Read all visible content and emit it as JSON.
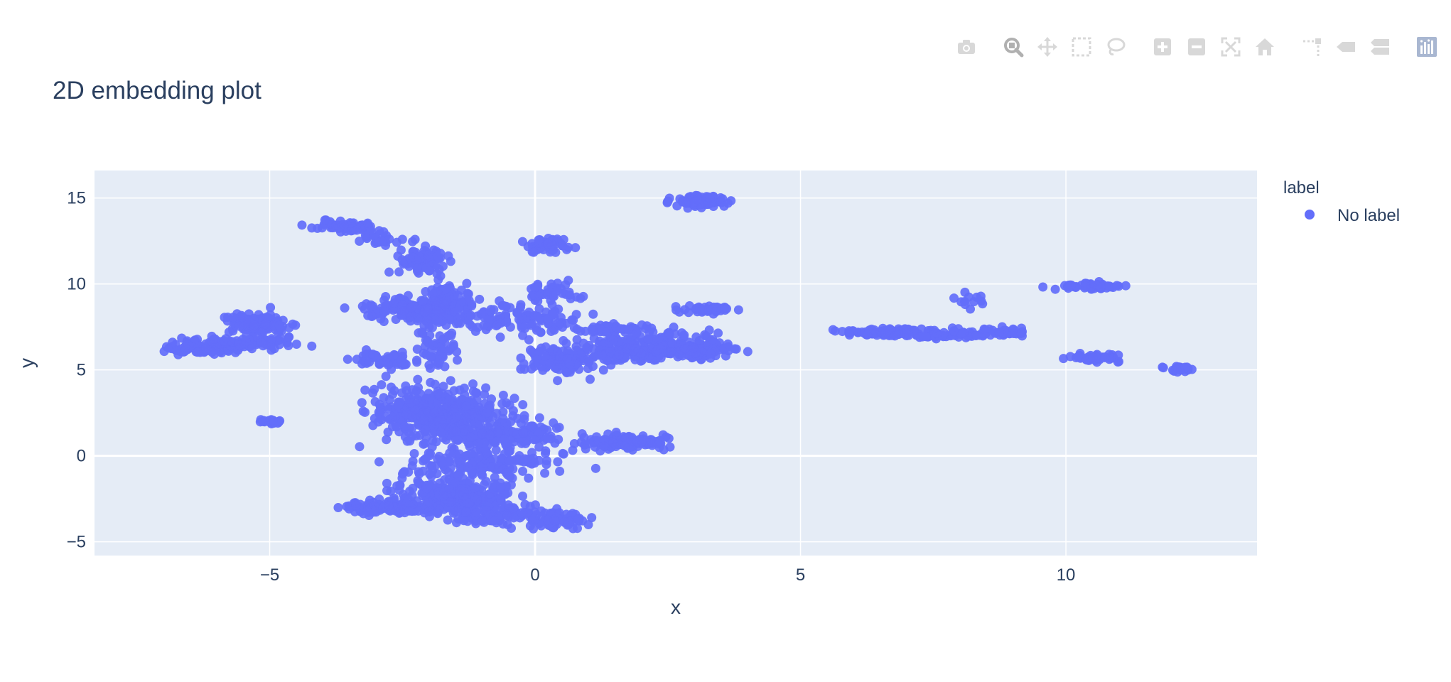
{
  "modebar": {
    "buttons": [
      "camera-icon",
      "zoom-icon",
      "pan-icon",
      "box-select-icon",
      "lasso-icon",
      "zoom-in-icon",
      "zoom-out-icon",
      "autoscale-icon",
      "reset-axes-icon",
      "spike-lines-icon",
      "hover-closest-icon",
      "hover-compare-icon",
      "plotly-logo-icon"
    ]
  },
  "colors": {
    "marker": "#636efa",
    "plot_bg": "#e5ecf6",
    "grid": "#ffffff",
    "modebar_icon": "#d8d8d8",
    "modebar_active": "#b0b0b0",
    "text": "#2a3f5f"
  },
  "chart_data": {
    "type": "scatter",
    "title": "2D embedding plot",
    "xlabel": "x",
    "ylabel": "y",
    "xlim": [
      -8.3,
      13.6
    ],
    "ylim": [
      -5.8,
      16.6
    ],
    "xticks": [
      -5,
      0,
      5,
      10
    ],
    "yticks": [
      -5,
      0,
      5,
      10,
      15
    ],
    "xtick_labels": [
      "−5",
      "0",
      "5",
      "10"
    ],
    "ytick_labels": [
      "−5",
      "0",
      "5",
      "10",
      "15"
    ],
    "grid": true,
    "legend": {
      "title": "label",
      "placement": "top-right outside",
      "entries": [
        "No label"
      ]
    },
    "series": [
      {
        "name": "No label",
        "clusters": [
          {
            "x": -6.3,
            "y": 6.3,
            "sx": 0.4,
            "sy": 0.2,
            "n": 110
          },
          {
            "x": -5.2,
            "y": 7.7,
            "sx": 0.3,
            "sy": 0.3,
            "n": 110
          },
          {
            "x": -5.3,
            "y": 6.6,
            "sx": 0.4,
            "sy": 0.2,
            "n": 70
          },
          {
            "x": -5.0,
            "y": 2.0,
            "sx": 0.1,
            "sy": 0.08,
            "n": 20
          },
          {
            "x": -3.6,
            "y": 13.4,
            "sx": 0.3,
            "sy": 0.15,
            "n": 60
          },
          {
            "x": -3.0,
            "y": 12.8,
            "sx": 0.3,
            "sy": 0.3,
            "n": 30
          },
          {
            "x": -2.1,
            "y": 11.3,
            "sx": 0.25,
            "sy": 0.4,
            "n": 70
          },
          {
            "x": -2.3,
            "y": 8.5,
            "sx": 0.5,
            "sy": 0.3,
            "n": 160
          },
          {
            "x": -1.7,
            "y": 8.7,
            "sx": 0.3,
            "sy": 0.7,
            "n": 110
          },
          {
            "x": -2.7,
            "y": 5.6,
            "sx": 0.4,
            "sy": 0.2,
            "n": 60
          },
          {
            "x": -1.8,
            "y": 6.5,
            "sx": 0.2,
            "sy": 0.5,
            "n": 40
          },
          {
            "x": -2.1,
            "y": 2.6,
            "sx": 0.5,
            "sy": 0.7,
            "n": 250
          },
          {
            "x": -1.3,
            "y": 2.0,
            "sx": 0.5,
            "sy": 0.8,
            "n": 200
          },
          {
            "x": -0.5,
            "y": 1.2,
            "sx": 0.6,
            "sy": 0.3,
            "n": 110
          },
          {
            "x": -0.9,
            "y": -0.4,
            "sx": 0.7,
            "sy": 0.4,
            "n": 160
          },
          {
            "x": -1.5,
            "y": -2.3,
            "sx": 0.6,
            "sy": 0.5,
            "n": 220
          },
          {
            "x": -2.7,
            "y": -3.0,
            "sx": 0.5,
            "sy": 0.2,
            "n": 110
          },
          {
            "x": -0.7,
            "y": -3.3,
            "sx": 0.5,
            "sy": 0.4,
            "n": 110
          },
          {
            "x": 0.5,
            "y": -3.8,
            "sx": 0.3,
            "sy": 0.25,
            "n": 60
          },
          {
            "x": -0.3,
            "y": 8.0,
            "sx": 0.5,
            "sy": 0.5,
            "n": 110
          },
          {
            "x": 0.3,
            "y": 9.5,
            "sx": 0.3,
            "sy": 0.3,
            "n": 40
          },
          {
            "x": 0.3,
            "y": 12.3,
            "sx": 0.2,
            "sy": 0.2,
            "n": 50
          },
          {
            "x": 0.5,
            "y": 5.5,
            "sx": 0.4,
            "sy": 0.4,
            "n": 90
          },
          {
            "x": 1.5,
            "y": 6.0,
            "sx": 0.6,
            "sy": 0.3,
            "n": 110
          },
          {
            "x": 2.4,
            "y": 6.4,
            "sx": 0.6,
            "sy": 0.4,
            "n": 140
          },
          {
            "x": 1.5,
            "y": 7.4,
            "sx": 0.4,
            "sy": 0.15,
            "n": 50
          },
          {
            "x": 3.1,
            "y": 6.1,
            "sx": 0.3,
            "sy": 0.2,
            "n": 60
          },
          {
            "x": 3.3,
            "y": 8.5,
            "sx": 0.3,
            "sy": 0.1,
            "n": 40
          },
          {
            "x": 3.1,
            "y": 14.8,
            "sx": 0.25,
            "sy": 0.15,
            "n": 90
          },
          {
            "x": 1.6,
            "y": 0.8,
            "sx": 0.4,
            "sy": 0.2,
            "n": 110
          },
          {
            "x": 2.2,
            "y": 0.8,
            "sx": 0.2,
            "sy": 0.06,
            "n": 30
          },
          {
            "x": 6.6,
            "y": 7.2,
            "sx": 0.4,
            "sy": 0.12,
            "n": 90
          },
          {
            "x": 7.6,
            "y": 7.0,
            "sx": 0.3,
            "sy": 0.1,
            "n": 30
          },
          {
            "x": 8.3,
            "y": 7.2,
            "sx": 0.3,
            "sy": 0.15,
            "n": 40
          },
          {
            "x": 9.0,
            "y": 7.2,
            "sx": 0.1,
            "sy": 0.1,
            "n": 20
          },
          {
            "x": 8.2,
            "y": 9.3,
            "sx": 0.2,
            "sy": 0.3,
            "n": 12
          },
          {
            "x": 10.4,
            "y": 9.9,
            "sx": 0.3,
            "sy": 0.1,
            "n": 60
          },
          {
            "x": 10.6,
            "y": 5.7,
            "sx": 0.3,
            "sy": 0.1,
            "n": 50
          },
          {
            "x": 12.1,
            "y": 5.1,
            "sx": 0.15,
            "sy": 0.1,
            "n": 20
          }
        ]
      }
    ]
  }
}
